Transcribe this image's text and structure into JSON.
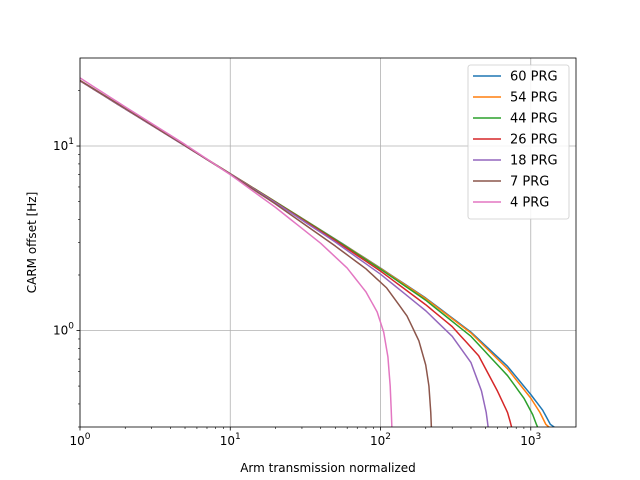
{
  "chart_data": {
    "type": "line",
    "title": "",
    "xlabel": "Arm transmission normalized",
    "ylabel": "CARM offset [Hz]",
    "xscale": "log",
    "yscale": "log",
    "xlim": [
      1,
      2000
    ],
    "ylim": [
      0.3,
      30
    ],
    "grid": true,
    "legend_position": "top-right",
    "x_ticks": [
      {
        "value": 1,
        "base": "10",
        "exp": "0"
      },
      {
        "value": 10,
        "base": "10",
        "exp": "1"
      },
      {
        "value": 100,
        "base": "10",
        "exp": "2"
      },
      {
        "value": 1000,
        "base": "10",
        "exp": "3"
      }
    ],
    "y_ticks": [
      {
        "value": 1,
        "base": "10",
        "exp": "0"
      },
      {
        "value": 10,
        "base": "10",
        "exp": "1"
      }
    ],
    "series": [
      {
        "name": "60 PRG",
        "color": "#1f77b4",
        "x": [
          1,
          2,
          5,
          10,
          20,
          50,
          100,
          200,
          400,
          700,
          1000,
          1200,
          1350,
          1430
        ],
        "y": [
          22.6,
          15.9,
          10.05,
          7.08,
          4.99,
          3.13,
          2.18,
          1.5,
          0.98,
          0.64,
          0.45,
          0.37,
          0.31,
          0.3
        ]
      },
      {
        "name": "54 PRG",
        "color": "#ff7f0e",
        "x": [
          1,
          2,
          5,
          10,
          20,
          50,
          100,
          200,
          400,
          700,
          1000,
          1150,
          1260,
          1320
        ],
        "y": [
          22.6,
          15.9,
          10.05,
          7.08,
          4.99,
          3.12,
          2.17,
          1.49,
          0.97,
          0.62,
          0.43,
          0.36,
          0.31,
          0.3
        ]
      },
      {
        "name": "44 PRG",
        "color": "#2ca02c",
        "x": [
          1,
          2,
          5,
          10,
          20,
          50,
          100,
          200,
          400,
          700,
          900,
          1030,
          1090,
          1110
        ],
        "y": [
          22.6,
          15.9,
          10.04,
          7.07,
          4.98,
          3.11,
          2.15,
          1.46,
          0.93,
          0.57,
          0.43,
          0.35,
          0.31,
          0.3
        ]
      },
      {
        "name": "26 PRG",
        "color": "#d62728",
        "x": [
          1,
          2,
          5,
          10,
          20,
          50,
          100,
          200,
          300,
          450,
          600,
          700,
          730,
          745
        ],
        "y": [
          22.6,
          15.9,
          10.03,
          7.06,
          4.95,
          3.07,
          2.1,
          1.38,
          1.05,
          0.73,
          0.47,
          0.36,
          0.32,
          0.3
        ]
      },
      {
        "name": "18 PRG",
        "color": "#9467bd",
        "x": [
          1,
          2,
          5,
          10,
          20,
          50,
          100,
          200,
          300,
          400,
          470,
          505,
          515,
          520
        ],
        "y": [
          22.6,
          15.9,
          10.02,
          7.05,
          4.93,
          3.02,
          2.02,
          1.28,
          0.93,
          0.67,
          0.47,
          0.36,
          0.32,
          0.3
        ]
      },
      {
        "name": "7 PRG",
        "color": "#8c564b",
        "x": [
          1,
          2,
          5,
          10,
          20,
          50,
          80,
          110,
          150,
          180,
          200,
          210,
          216,
          218
        ],
        "y": [
          22.7,
          16.0,
          10.05,
          7.03,
          4.85,
          2.87,
          2.16,
          1.7,
          1.2,
          0.88,
          0.65,
          0.5,
          0.36,
          0.3
        ]
      },
      {
        "name": "4 PRG",
        "color": "#e377c2",
        "x": [
          1,
          2,
          5,
          10,
          20,
          40,
          60,
          80,
          95,
          105,
          112,
          116,
          118,
          119
        ],
        "y": [
          23.4,
          16.3,
          10.2,
          7.0,
          4.65,
          2.97,
          2.18,
          1.62,
          1.26,
          0.98,
          0.72,
          0.5,
          0.36,
          0.3
        ]
      }
    ]
  }
}
